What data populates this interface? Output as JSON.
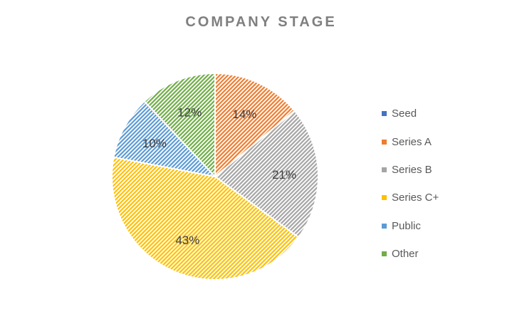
{
  "chart_data": {
    "type": "pie",
    "title": "COMPANY STAGE",
    "categories": [
      "Seed",
      "Series A",
      "Series B",
      "Series C+",
      "Public",
      "Other"
    ],
    "values": [
      0,
      14,
      21,
      43,
      10,
      12
    ],
    "data_labels": [
      "",
      "14%",
      "21%",
      "43%",
      "10%",
      "12%"
    ],
    "colors": [
      "#4472c4",
      "#ed7d31",
      "#a5a5a5",
      "#ffc000",
      "#5b9bd5",
      "#70ad47"
    ],
    "fill_style": "diagonal-hatch",
    "legend_position": "right"
  }
}
